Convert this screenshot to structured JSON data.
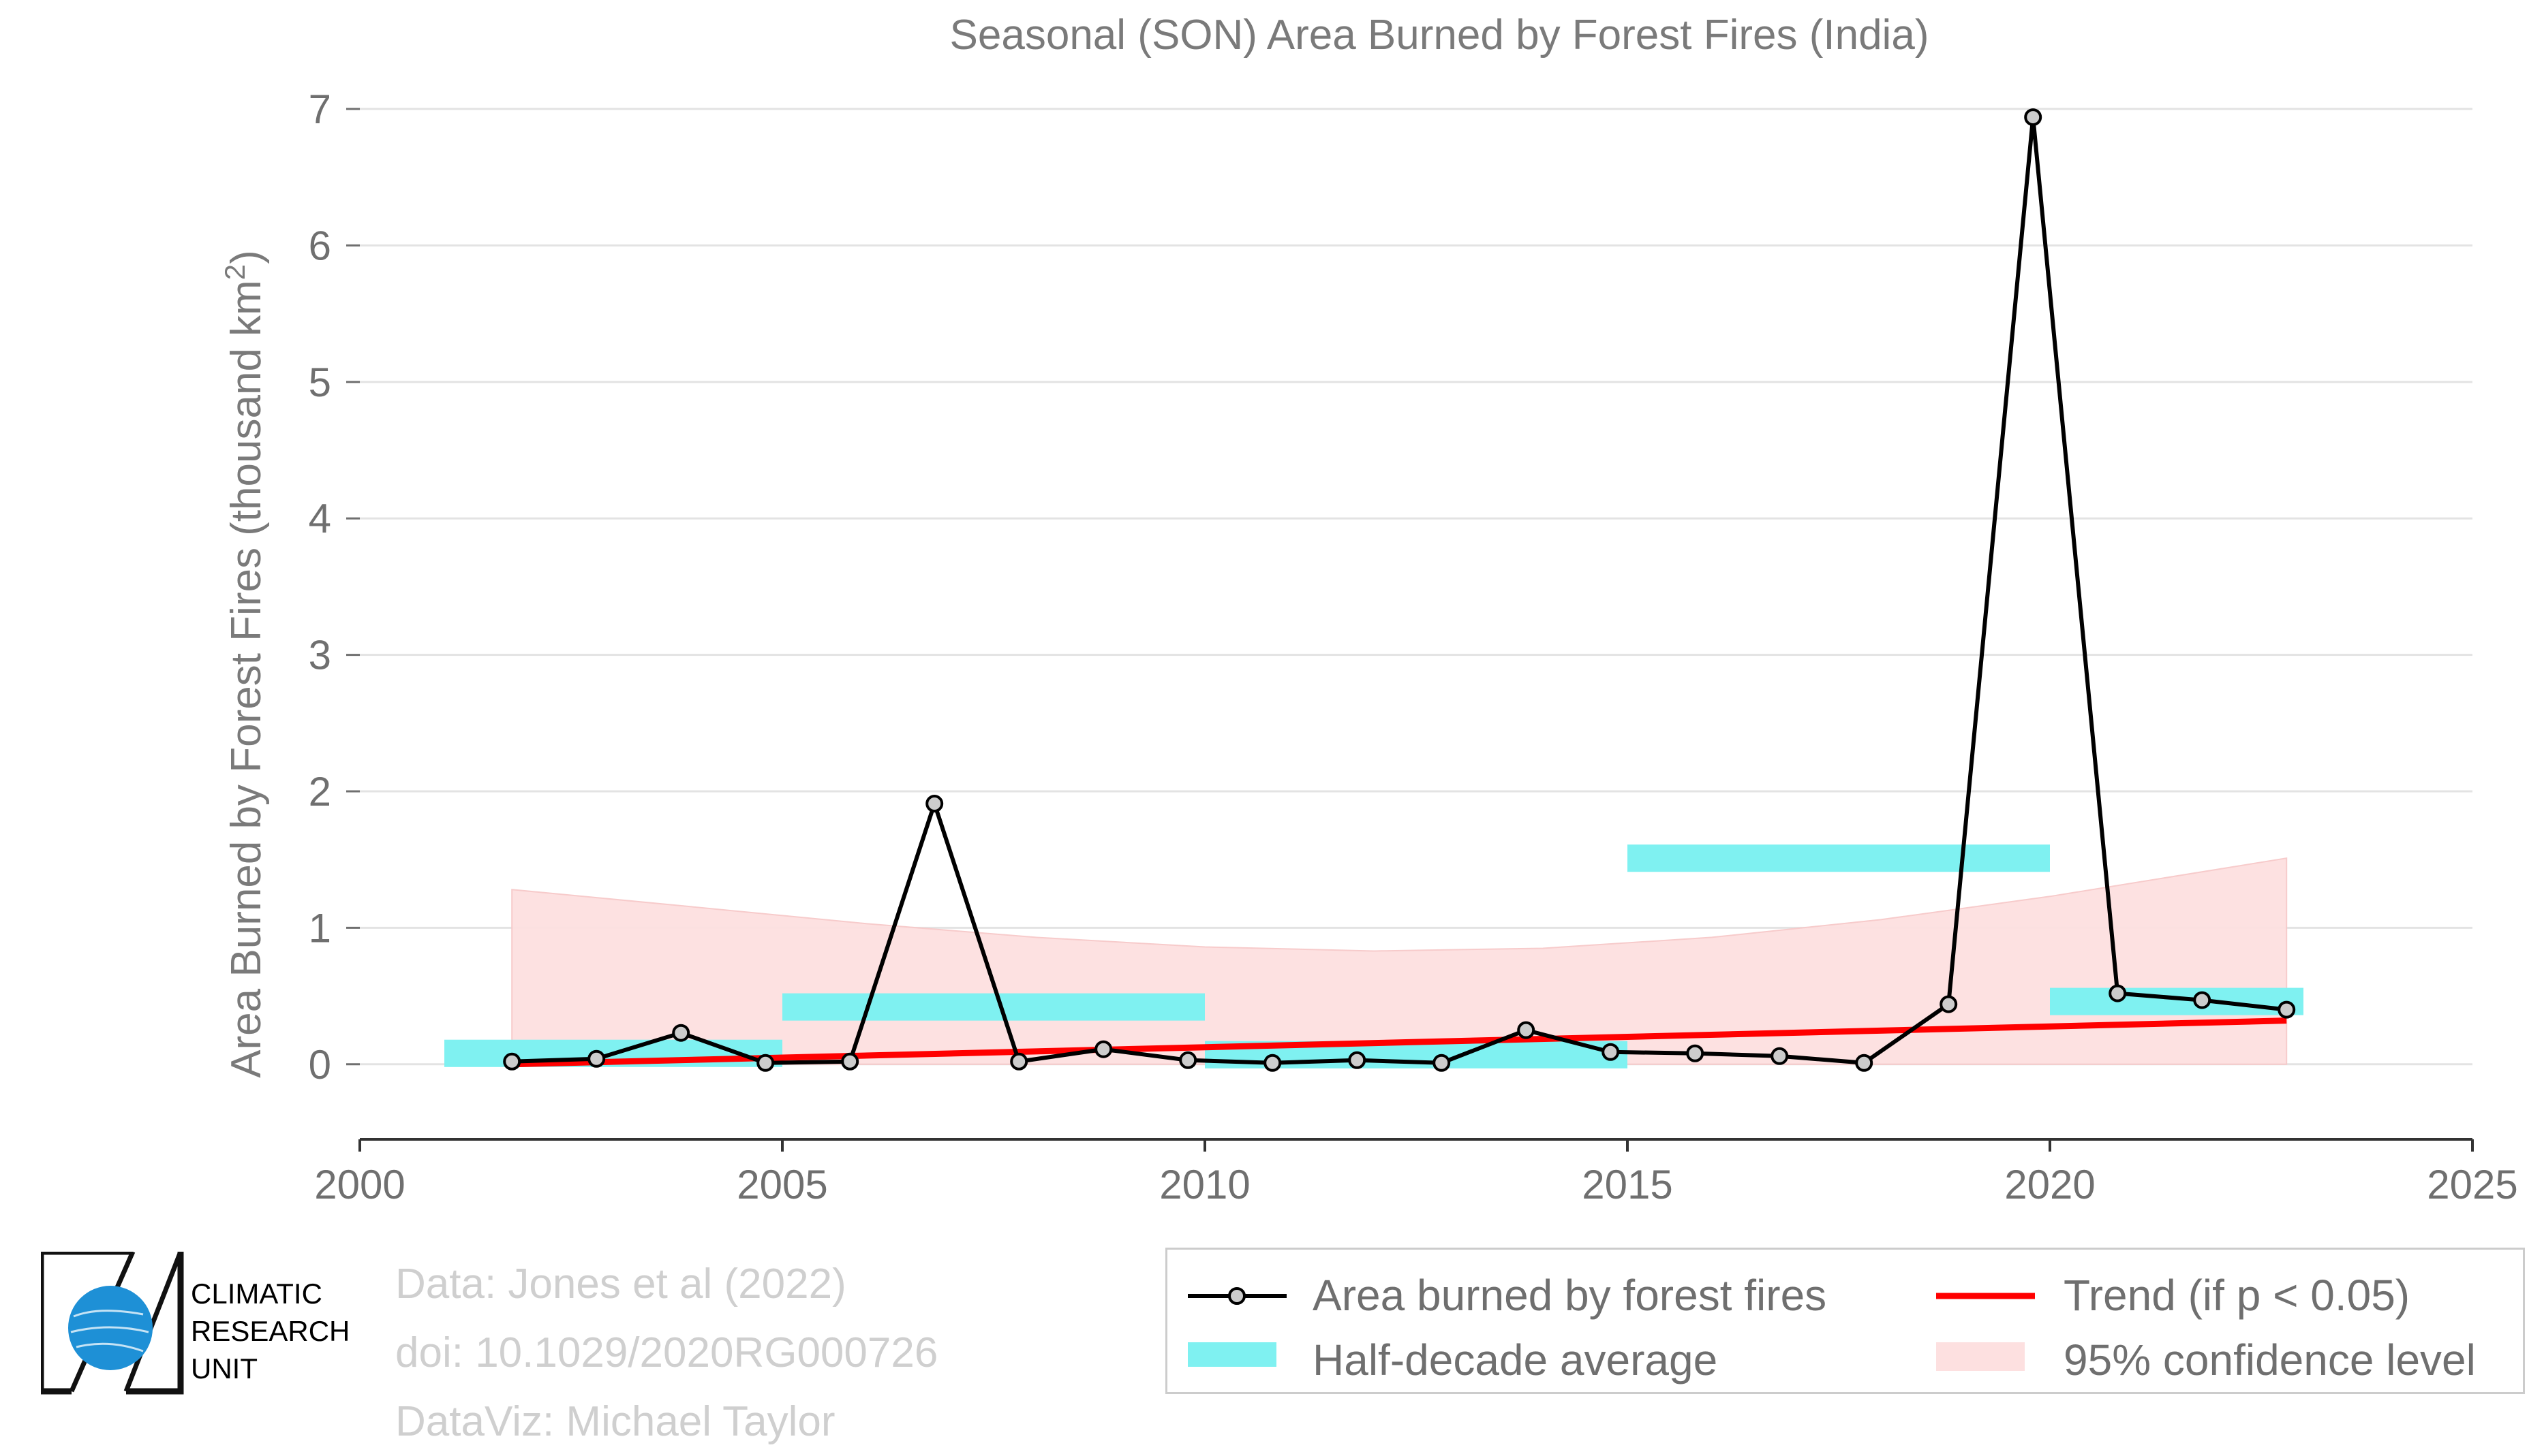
{
  "chart_data": {
    "type": "line",
    "title": "Seasonal (SON) Area Burned by Forest Fires (India)",
    "ylabel": "Area Burned by Forest Fires (thousand km²)",
    "xlabel": "",
    "xlim": [
      2000,
      2025
    ],
    "ylim": [
      -0.55,
      7.1
    ],
    "xticks": [
      2000,
      2005,
      2010,
      2015,
      2020,
      2025
    ],
    "yticks": [
      0,
      1,
      2,
      3,
      4,
      5,
      6,
      7
    ],
    "grid": true,
    "legend_position": "bottom-right",
    "series": [
      {
        "name": "Area burned by forest fires",
        "color": "#000000",
        "marker_fill": "#cccccc",
        "x": [
          2001.8,
          2002.8,
          2003.8,
          2004.8,
          2005.8,
          2006.8,
          2007.8,
          2008.8,
          2009.8,
          2010.8,
          2011.8,
          2012.8,
          2013.8,
          2014.8,
          2015.8,
          2016.8,
          2017.8,
          2018.8,
          2019.8,
          2020.8,
          2021.8,
          2022.8
        ],
        "y": [
          0.02,
          0.04,
          0.23,
          0.01,
          0.02,
          1.91,
          0.02,
          0.11,
          0.03,
          0.01,
          0.03,
          0.01,
          0.25,
          0.09,
          0.08,
          0.06,
          0.01,
          0.44,
          6.94,
          0.52,
          0.47,
          0.4
        ]
      }
    ],
    "half_decade_average": {
      "name": "Half-decade average",
      "color": "#7ff1f1",
      "periods": [
        {
          "x0": 2001,
          "x1": 2005,
          "y": 0.08
        },
        {
          "x0": 2005,
          "x1": 2010,
          "y": 0.42
        },
        {
          "x0": 2010,
          "x1": 2015,
          "y": 0.07
        },
        {
          "x0": 2015,
          "x1": 2020,
          "y": 1.51
        },
        {
          "x0": 2020,
          "x1": 2023,
          "y": 0.46
        }
      ]
    },
    "trend": {
      "name": "Trend (if p < 0.05)",
      "color": "#ff0000",
      "x": [
        2001.8,
        2022.8
      ],
      "y": [
        0.0,
        0.32
      ]
    },
    "confidence": {
      "name": "95% confidence level",
      "color": "#fde0e0",
      "x": [
        2001.8,
        2004.0,
        2006.0,
        2008.0,
        2010.0,
        2012.0,
        2014.0,
        2016.0,
        2018.0,
        2020.0,
        2022.8
      ],
      "upper": [
        1.28,
        1.15,
        1.03,
        0.93,
        0.86,
        0.83,
        0.85,
        0.93,
        1.06,
        1.23,
        1.51
      ],
      "lower": [
        0,
        0,
        0,
        0,
        0,
        0,
        0,
        0,
        0,
        0,
        0
      ]
    }
  },
  "credits": {
    "line1": "Data: Jones et al (2022)",
    "line2": "doi: 10.1029/2020RG000726",
    "line3": "DataViz: Michael Taylor"
  },
  "logo": {
    "line1": "CLIMATIC",
    "line2": "RESEARCH",
    "line3": "UNIT",
    "globe_color": "#1e90d6"
  },
  "legend": {
    "item1": "Area burned by forest fires",
    "item2": "Trend (if p < 0.05)",
    "item3": "Half-decade average",
    "item4": "95% confidence level"
  }
}
